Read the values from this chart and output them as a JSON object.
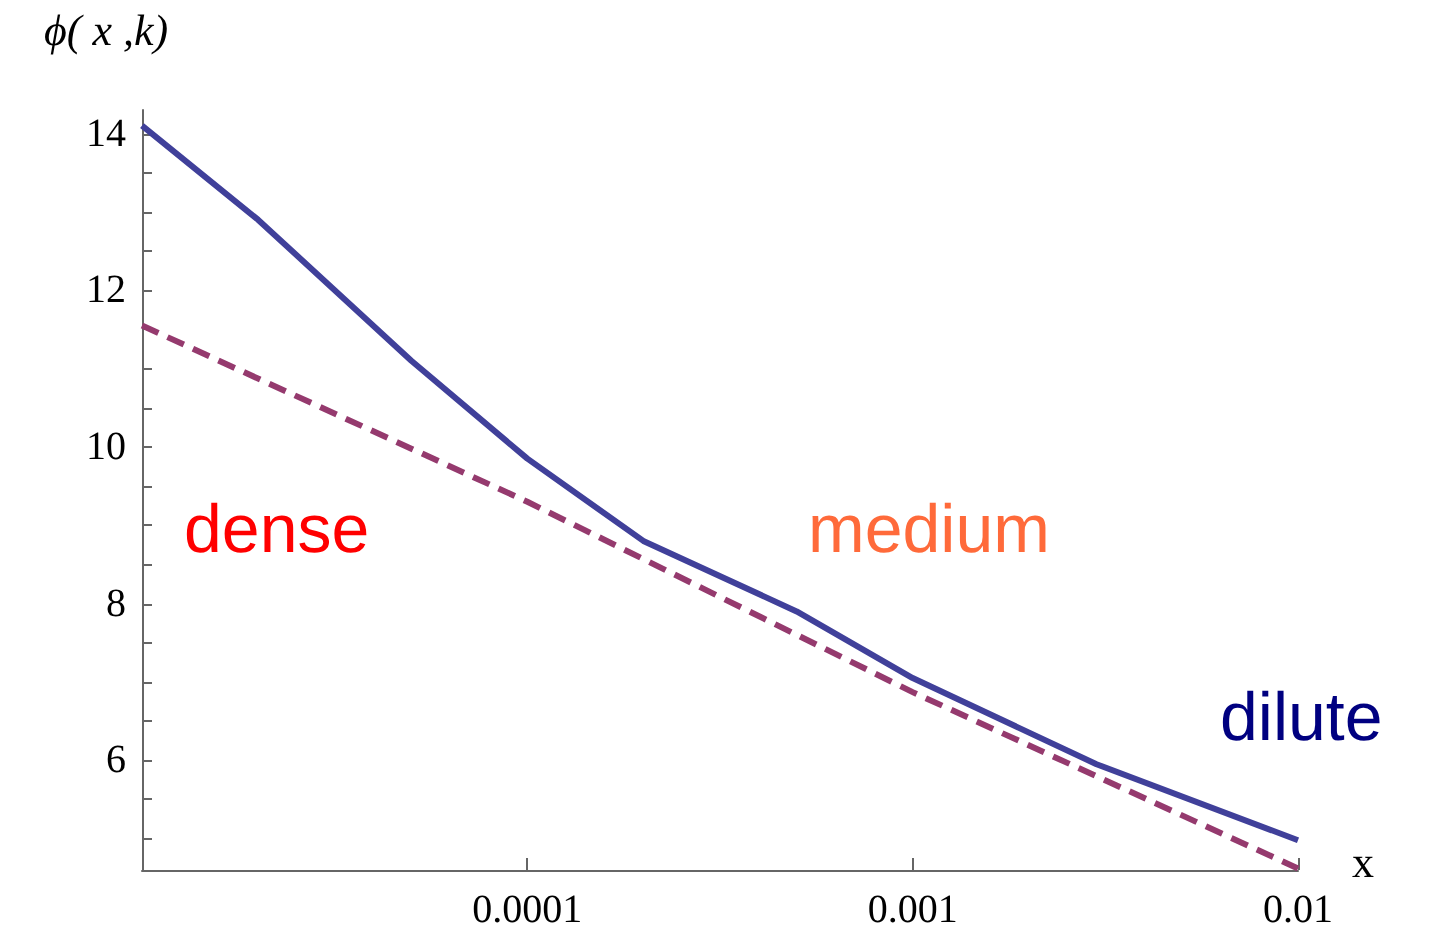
{
  "chart_data": {
    "type": "line",
    "xlabel": "x",
    "ylabel": "ϕ( x ,k)",
    "annotations": [
      "dense",
      "medium",
      "dilute"
    ],
    "log": "x",
    "grid": false,
    "xlim": [
      1e-05,
      0.01
    ],
    "xticks": [
      0.0001,
      0.001,
      0.01
    ],
    "ylim": [
      4.6,
      14.3
    ],
    "yticks": [
      6,
      8,
      10,
      12,
      14
    ],
    "series": [
      {
        "color": "#40409a",
        "line_style": "solid",
        "x": [
          1e-05,
          2e-05,
          5e-05,
          0.0001,
          0.0002,
          0.0005,
          0.001,
          0.003,
          0.01
        ],
        "values": [
          14.1,
          12.9,
          11.1,
          9.85,
          8.8,
          7.9,
          7.05,
          5.95,
          4.98
        ]
      },
      {
        "color": "#953a6e",
        "line_style": "dashed",
        "x": [
          1e-05,
          0.0001,
          0.001,
          0.01
        ],
        "values": [
          11.55,
          9.3,
          6.87,
          4.62
        ]
      }
    ]
  }
}
